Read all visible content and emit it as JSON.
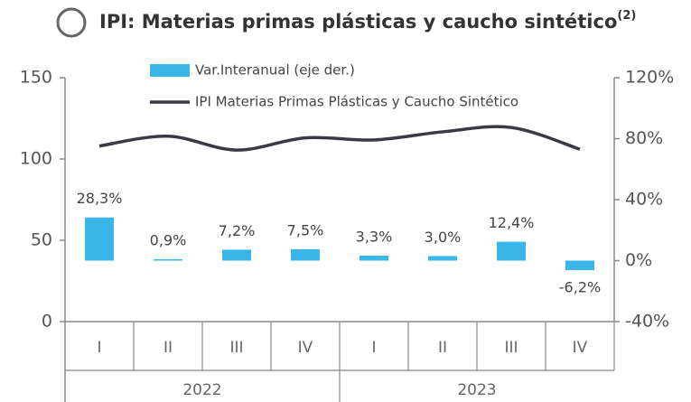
{
  "chart_data": {
    "type": "bar",
    "title": "IPI: Materias primas plásticas y caucho sintético",
    "title_note": "(2)",
    "categories": [
      "I",
      "II",
      "III",
      "IV",
      "I",
      "II",
      "III",
      "IV"
    ],
    "groups": [
      "2022",
      "2023"
    ],
    "ylim": [
      0,
      150
    ],
    "yticks": [
      0,
      50,
      100,
      150
    ],
    "y2lim": [
      -40,
      120
    ],
    "y2ticks": [
      {
        "value": -40,
        "label": "-40%"
      },
      {
        "value": 0,
        "label": "0%"
      },
      {
        "value": 40,
        "label": "40%"
      },
      {
        "value": 80,
        "label": "80%"
      },
      {
        "value": 120,
        "label": "120%"
      }
    ],
    "series": [
      {
        "name": "Var.Interanual (eje der.)",
        "type": "bar",
        "axis": "y2",
        "color": "#3bb6e8",
        "values": [
          28.3,
          0.9,
          7.2,
          7.5,
          3.3,
          3.0,
          12.4,
          -6.2
        ],
        "value_labels": [
          "28,3%",
          "0,9%",
          "7,2%",
          "7,5%",
          "3,3%",
          "3,0%",
          "12,4%",
          "-6,2%"
        ]
      },
      {
        "name": "IPI Materias Primas Plásticas y Caucho Sintético",
        "type": "line",
        "axis": "y",
        "color": "#3a3a44",
        "values": [
          108,
          114,
          105.5,
          113,
          111.7,
          116.7,
          119.4,
          106
        ]
      }
    ]
  }
}
